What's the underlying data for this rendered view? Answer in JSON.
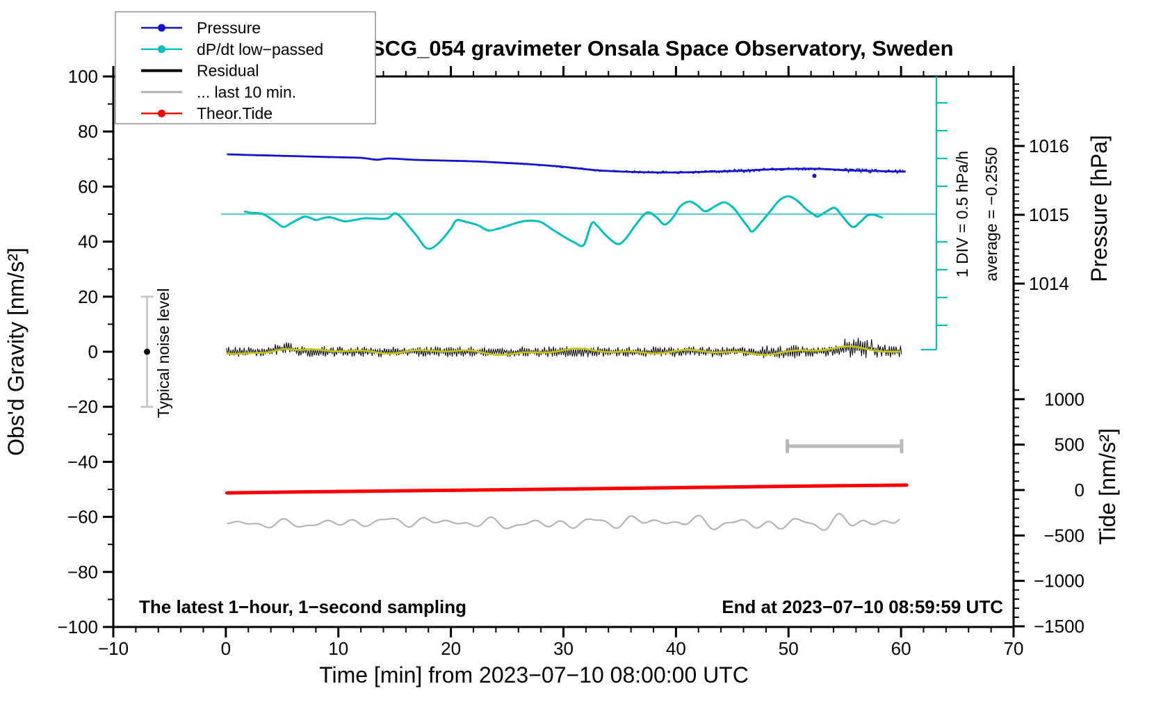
{
  "title": "SCG_054 gravimeter Onsala Space Observatory, Sweden",
  "notes": {
    "bottom_left": "The latest 1−hour, 1−second sampling",
    "bottom_right": "End at 2023−07−10 08:59:59 UTC"
  },
  "annotations": {
    "noise_bar_label": "Typical noise level",
    "div_scale_label": "1 DIV = 0.5 hPa/h",
    "average_label": "average = −0.2550"
  },
  "legend": {
    "entries": [
      {
        "label": "Pressure",
        "color": "#1414cf",
        "lw": 2.4,
        "dot": true
      },
      {
        "label": "dP/dt low−passed",
        "color": "#00bfbf",
        "lw": 2.4,
        "dot": true
      },
      {
        "label": "Residual",
        "color": "#000000",
        "lw": 4.0,
        "dot": false
      },
      {
        "label": "... last 10 min.",
        "color": "#b5b5b5",
        "lw": 3.2,
        "dot": false
      },
      {
        "label": "Theor.Tide",
        "color": "#ff0000",
        "lw": 2.4,
        "dot": true
      }
    ]
  },
  "colors": {
    "pressure": "#1414cf",
    "dpdt": "#00bfbf",
    "dpdt_ref": "#62caca",
    "residual": "#000000",
    "residual_smooth": "#c6c600",
    "last10": "#b5b5b5",
    "tide": "#ff0000",
    "noise_bar": "#c8c8c8",
    "span_bar": "#b9b9b9",
    "legend_border": "#909090"
  },
  "axes": {
    "x": {
      "label": "Time [min] from 2023−07−10 08:00:00 UTC",
      "range": [
        -10,
        70
      ],
      "major_ticks": [
        -10,
        0,
        10,
        20,
        30,
        40,
        50,
        60,
        70
      ],
      "minor_step": 2
    },
    "y_left": {
      "label": "Obs'd Gravity [nm/s²]",
      "range": [
        -100,
        100
      ],
      "major_ticks": [
        -100,
        -80,
        -60,
        -40,
        -20,
        0,
        20,
        40,
        60,
        80,
        100
      ],
      "minor_step": 10
    },
    "y_right_pressure": {
      "label": "Pressure [hPa]",
      "major_ticks": [
        1014,
        1015,
        1016
      ],
      "minor_step": 0.1
    },
    "y_right_tide": {
      "label": "Tide [nm/s²]",
      "major_ticks": [
        1000,
        500,
        0,
        -500,
        -1000,
        -1500
      ],
      "minor_step": 100
    }
  },
  "chart_data": {
    "type": "line",
    "title": "SCG_054 gravimeter Onsala Space Observatory, Sweden",
    "xlabel": "Time [min] from 2023-07-10 08:00:00 UTC",
    "x_range_min": [
      -10,
      70
    ],
    "grid": false,
    "series": [
      {
        "name": "Pressure",
        "unit": "hPa",
        "axis": "pressure",
        "points": [
          [
            0.1,
            1015.879
          ],
          [
            2.1,
            1015.869
          ],
          [
            4.6,
            1015.859
          ],
          [
            7.0,
            1015.848
          ],
          [
            9.5,
            1015.838
          ],
          [
            12.0,
            1015.828
          ],
          [
            13.4,
            1015.8
          ],
          [
            14.5,
            1015.818
          ],
          [
            16.9,
            1015.798
          ],
          [
            19.4,
            1015.788
          ],
          [
            21.9,
            1015.778
          ],
          [
            24.4,
            1015.758
          ],
          [
            26.8,
            1015.737
          ],
          [
            29.3,
            1015.707
          ],
          [
            31.2,
            1015.677
          ],
          [
            33.0,
            1015.646
          ],
          [
            35.5,
            1015.626
          ],
          [
            38.0,
            1015.616
          ],
          [
            40.4,
            1015.616
          ],
          [
            42.9,
            1015.626
          ],
          [
            45.4,
            1015.636
          ],
          [
            47.9,
            1015.657
          ],
          [
            50.3,
            1015.667
          ],
          [
            52.8,
            1015.667
          ],
          [
            55.3,
            1015.646
          ],
          [
            57.8,
            1015.636
          ],
          [
            60.4,
            1015.626
          ]
        ],
        "outlier": [
          52.3,
          1015.566
        ]
      },
      {
        "name": "dP/dt low-passed",
        "unit": "hPa/h",
        "axis": "dpdt",
        "average": -0.255,
        "div_value": 0.5,
        "points": [
          [
            1.7,
            -0.211
          ],
          [
            2.2,
            -0.23
          ],
          [
            3.3,
            -0.255
          ],
          [
            4.4,
            -0.393
          ],
          [
            5.1,
            -0.486
          ],
          [
            5.8,
            -0.418
          ],
          [
            6.9,
            -0.305
          ],
          [
            7.5,
            -0.324
          ],
          [
            8.0,
            -0.361
          ],
          [
            8.6,
            -0.33
          ],
          [
            9.2,
            -0.311
          ],
          [
            9.9,
            -0.349
          ],
          [
            10.6,
            -0.386
          ],
          [
            11.4,
            -0.361
          ],
          [
            12.4,
            -0.33
          ],
          [
            13.2,
            -0.336
          ],
          [
            14.0,
            -0.343
          ],
          [
            14.5,
            -0.318
          ],
          [
            15.0,
            -0.243
          ],
          [
            15.5,
            -0.299
          ],
          [
            16.3,
            -0.486
          ],
          [
            17.0,
            -0.655
          ],
          [
            17.7,
            -0.849
          ],
          [
            18.3,
            -0.868
          ],
          [
            19.1,
            -0.736
          ],
          [
            20.0,
            -0.518
          ],
          [
            20.5,
            -0.368
          ],
          [
            21.4,
            -0.399
          ],
          [
            22.4,
            -0.455
          ],
          [
            23.3,
            -0.549
          ],
          [
            24.2,
            -0.518
          ],
          [
            25.2,
            -0.455
          ],
          [
            26.1,
            -0.399
          ],
          [
            27.0,
            -0.374
          ],
          [
            28.0,
            -0.399
          ],
          [
            29.0,
            -0.53
          ],
          [
            30.1,
            -0.668
          ],
          [
            31.0,
            -0.768
          ],
          [
            31.8,
            -0.811
          ],
          [
            32.5,
            -0.424
          ],
          [
            33.0,
            -0.468
          ],
          [
            33.8,
            -0.643
          ],
          [
            34.8,
            -0.793
          ],
          [
            35.5,
            -0.705
          ],
          [
            36.4,
            -0.455
          ],
          [
            37.4,
            -0.23
          ],
          [
            38.2,
            -0.299
          ],
          [
            39.0,
            -0.443
          ],
          [
            39.8,
            -0.299
          ],
          [
            40.4,
            -0.111
          ],
          [
            41.2,
            -0.03
          ],
          [
            41.9,
            -0.099
          ],
          [
            42.6,
            -0.205
          ],
          [
            43.5,
            -0.111
          ],
          [
            44.3,
            -0.043
          ],
          [
            45.1,
            -0.143
          ],
          [
            45.8,
            -0.33
          ],
          [
            46.4,
            -0.486
          ],
          [
            46.8,
            -0.568
          ],
          [
            47.6,
            -0.393
          ],
          [
            48.5,
            -0.174
          ],
          [
            49.2,
            -0.005
          ],
          [
            50.0,
            0.064
          ],
          [
            50.8,
            -0.018
          ],
          [
            51.6,
            -0.174
          ],
          [
            52.2,
            -0.255
          ],
          [
            52.6,
            -0.299
          ],
          [
            53.3,
            -0.218
          ],
          [
            54.1,
            -0.143
          ],
          [
            54.8,
            -0.299
          ],
          [
            55.7,
            -0.486
          ],
          [
            56.4,
            -0.393
          ],
          [
            57.0,
            -0.28
          ],
          [
            57.6,
            -0.268
          ],
          [
            58.3,
            -0.318
          ]
        ]
      },
      {
        "name": "Residual",
        "unit": "nm/s2",
        "axis": "gravity",
        "t_start": 0.05,
        "t_end": 60.0,
        "mean": 0,
        "typical_amplitude": 2.0,
        "burst_amplitude": 3.8,
        "burst_t": [
          55.0,
          57.6
        ],
        "smooth_overlay_amplitude": 0.8
      },
      {
        "name": "... last 10 min.",
        "unit": "nm/s2",
        "axis": "tide",
        "t_start": 0.1,
        "t_end": 60.0,
        "center": -360,
        "amplitude": 55
      },
      {
        "name": "Theor.Tide",
        "unit": "nm/s2",
        "axis": "tide",
        "points": [
          [
            0.1,
            -31
          ],
          [
            10,
            -16
          ],
          [
            20,
            -3
          ],
          [
            30,
            11
          ],
          [
            40,
            26
          ],
          [
            50,
            41
          ],
          [
            60.5,
            54
          ]
        ]
      }
    ],
    "markers": {
      "typical_noise_level": {
        "t": -7.0,
        "value": 0,
        "half_range": 20,
        "unit": "nm/s2"
      },
      "last10_span_bar": {
        "t_from": 49.9,
        "t_to": 60.05,
        "gravity_level": -34.3
      }
    }
  }
}
